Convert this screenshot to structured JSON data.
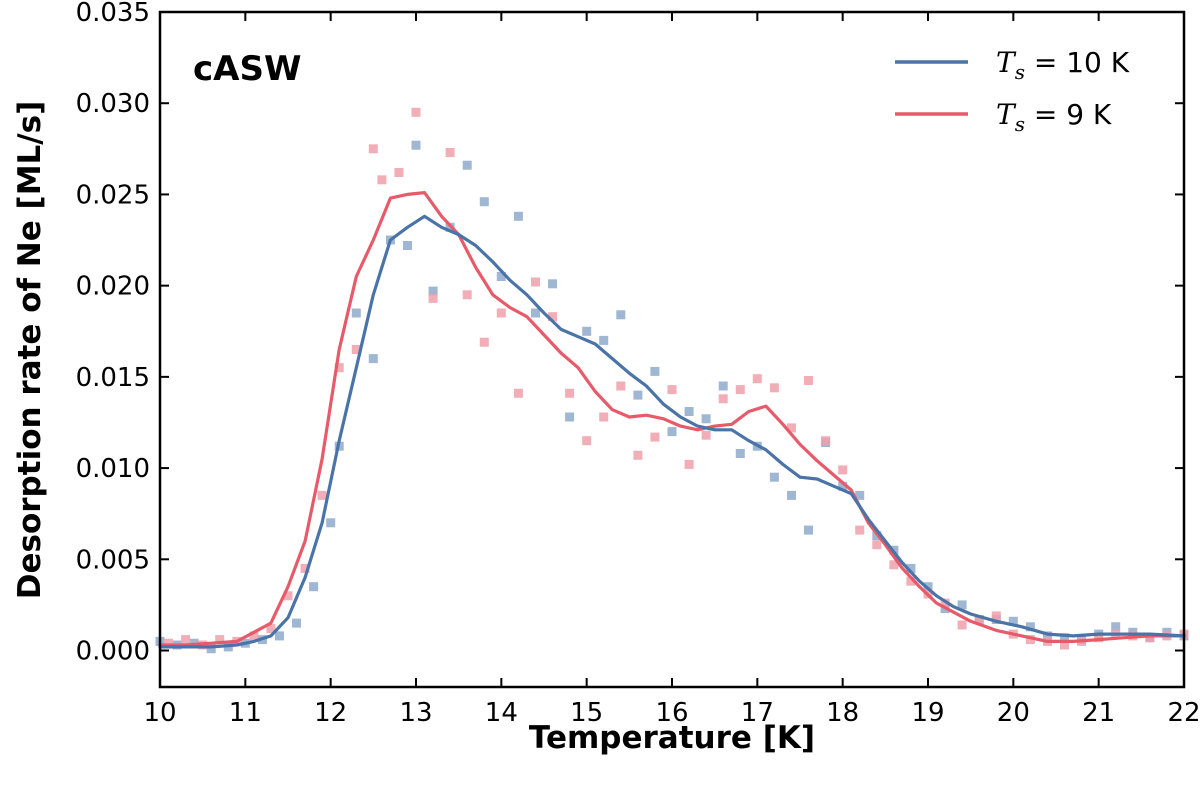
{
  "chart_data": {
    "type": "line",
    "panel_label": "cASW",
    "xlabel": "Temperature [K]",
    "ylabel": "Desorption rate of Ne [ML/s]",
    "xlim": [
      10,
      22
    ],
    "ylim": [
      -0.002,
      0.035
    ],
    "xticks": [
      10,
      11,
      12,
      13,
      14,
      15,
      16,
      17,
      18,
      19,
      20,
      21,
      22
    ],
    "yticks": [
      "0.000",
      "0.005",
      "0.010",
      "0.015",
      "0.020",
      "0.025",
      "0.030",
      "0.035"
    ],
    "legend_position": "top-right",
    "series": [
      {
        "name": "T_s = 10 K",
        "legend_var": "T",
        "legend_sub": "s",
        "legend_rest": " = 10 K",
        "color": "#4a74a8",
        "marker_color": "#8eaacb",
        "line": [
          [
            10.0,
            0.0002
          ],
          [
            10.3,
            0.0002
          ],
          [
            10.6,
            0.0002
          ],
          [
            10.9,
            0.0003
          ],
          [
            11.1,
            0.0005
          ],
          [
            11.3,
            0.0008
          ],
          [
            11.5,
            0.0018
          ],
          [
            11.7,
            0.004
          ],
          [
            11.9,
            0.007
          ],
          [
            12.1,
            0.0115
          ],
          [
            12.3,
            0.0155
          ],
          [
            12.5,
            0.0195
          ],
          [
            12.7,
            0.0225
          ],
          [
            12.9,
            0.0232
          ],
          [
            13.1,
            0.0238
          ],
          [
            13.3,
            0.0232
          ],
          [
            13.5,
            0.0228
          ],
          [
            13.7,
            0.0222
          ],
          [
            13.9,
            0.0213
          ],
          [
            14.1,
            0.0203
          ],
          [
            14.3,
            0.0195
          ],
          [
            14.5,
            0.0185
          ],
          [
            14.7,
            0.0176
          ],
          [
            14.9,
            0.0172
          ],
          [
            15.1,
            0.0168
          ],
          [
            15.3,
            0.016
          ],
          [
            15.5,
            0.0152
          ],
          [
            15.7,
            0.0145
          ],
          [
            15.9,
            0.0135
          ],
          [
            16.1,
            0.0128
          ],
          [
            16.3,
            0.0123
          ],
          [
            16.5,
            0.0121
          ],
          [
            16.7,
            0.0121
          ],
          [
            16.9,
            0.0115
          ],
          [
            17.1,
            0.011
          ],
          [
            17.3,
            0.0102
          ],
          [
            17.5,
            0.0095
          ],
          [
            17.7,
            0.0094
          ],
          [
            17.9,
            0.009
          ],
          [
            18.1,
            0.0086
          ],
          [
            18.3,
            0.0072
          ],
          [
            18.5,
            0.006
          ],
          [
            18.7,
            0.0048
          ],
          [
            18.9,
            0.0038
          ],
          [
            19.1,
            0.003
          ],
          [
            19.3,
            0.0024
          ],
          [
            19.5,
            0.002
          ],
          [
            19.8,
            0.0016
          ],
          [
            20.1,
            0.0013
          ],
          [
            20.4,
            0.0009
          ],
          [
            20.7,
            0.0008
          ],
          [
            21.0,
            0.0009
          ],
          [
            21.3,
            0.0009
          ],
          [
            21.6,
            0.0009
          ],
          [
            22.0,
            0.0008
          ]
        ],
        "points": [
          [
            10.0,
            0.0005
          ],
          [
            10.2,
            0.0003
          ],
          [
            10.4,
            0.0004
          ],
          [
            10.6,
            0.0001
          ],
          [
            10.8,
            0.0002
          ],
          [
            11.0,
            0.0004
          ],
          [
            11.2,
            0.0006
          ],
          [
            11.4,
            0.0008
          ],
          [
            11.6,
            0.0015
          ],
          [
            11.8,
            0.0035
          ],
          [
            12.0,
            0.007
          ],
          [
            12.1,
            0.0112
          ],
          [
            12.3,
            0.0185
          ],
          [
            12.5,
            0.016
          ],
          [
            12.7,
            0.0225
          ],
          [
            12.9,
            0.0222
          ],
          [
            13.0,
            0.0277
          ],
          [
            13.2,
            0.0197
          ],
          [
            13.4,
            0.0232
          ],
          [
            13.6,
            0.0266
          ],
          [
            13.8,
            0.0246
          ],
          [
            14.0,
            0.0205
          ],
          [
            14.2,
            0.0238
          ],
          [
            14.4,
            0.0185
          ],
          [
            14.6,
            0.0201
          ],
          [
            14.8,
            0.0128
          ],
          [
            15.0,
            0.0175
          ],
          [
            15.2,
            0.017
          ],
          [
            15.4,
            0.0184
          ],
          [
            15.6,
            0.014
          ],
          [
            15.8,
            0.0153
          ],
          [
            16.0,
            0.012
          ],
          [
            16.2,
            0.0131
          ],
          [
            16.4,
            0.0127
          ],
          [
            16.6,
            0.0145
          ],
          [
            16.8,
            0.0108
          ],
          [
            17.0,
            0.0112
          ],
          [
            17.2,
            0.0095
          ],
          [
            17.4,
            0.0085
          ],
          [
            17.6,
            0.0066
          ],
          [
            17.8,
            0.0114
          ],
          [
            18.0,
            0.009
          ],
          [
            18.2,
            0.0085
          ],
          [
            18.4,
            0.0063
          ],
          [
            18.6,
            0.0055
          ],
          [
            18.8,
            0.0045
          ],
          [
            19.0,
            0.0035
          ],
          [
            19.2,
            0.0023
          ],
          [
            19.4,
            0.0025
          ],
          [
            19.6,
            0.0017
          ],
          [
            19.8,
            0.0017
          ],
          [
            20.0,
            0.0016
          ],
          [
            20.2,
            0.0013
          ],
          [
            20.4,
            0.0008
          ],
          [
            20.6,
            0.0007
          ],
          [
            20.8,
            0.0006
          ],
          [
            21.0,
            0.0009
          ],
          [
            21.2,
            0.0013
          ],
          [
            21.4,
            0.001
          ],
          [
            21.6,
            0.0007
          ],
          [
            21.8,
            0.001
          ],
          [
            22.0,
            0.0008
          ]
        ]
      },
      {
        "name": "T_s = 9 K",
        "legend_var": "T",
        "legend_sub": "s",
        "legend_rest": " = 9 K",
        "color": "#e75a6a",
        "marker_color": "#f0a0aa",
        "line": [
          [
            10.0,
            0.0003
          ],
          [
            10.3,
            0.0003
          ],
          [
            10.6,
            0.0004
          ],
          [
            10.9,
            0.0005
          ],
          [
            11.1,
            0.001
          ],
          [
            11.3,
            0.0015
          ],
          [
            11.5,
            0.0035
          ],
          [
            11.7,
            0.006
          ],
          [
            11.9,
            0.0105
          ],
          [
            12.1,
            0.0165
          ],
          [
            12.3,
            0.0205
          ],
          [
            12.5,
            0.0225
          ],
          [
            12.7,
            0.0248
          ],
          [
            12.9,
            0.025
          ],
          [
            13.1,
            0.0251
          ],
          [
            13.3,
            0.0238
          ],
          [
            13.5,
            0.0228
          ],
          [
            13.7,
            0.021
          ],
          [
            13.9,
            0.0195
          ],
          [
            14.1,
            0.0188
          ],
          [
            14.3,
            0.0183
          ],
          [
            14.5,
            0.0173
          ],
          [
            14.7,
            0.0163
          ],
          [
            14.9,
            0.0155
          ],
          [
            15.1,
            0.0142
          ],
          [
            15.3,
            0.0132
          ],
          [
            15.5,
            0.0128
          ],
          [
            15.7,
            0.0129
          ],
          [
            15.9,
            0.0127
          ],
          [
            16.1,
            0.0123
          ],
          [
            16.3,
            0.0121
          ],
          [
            16.5,
            0.0123
          ],
          [
            16.7,
            0.0124
          ],
          [
            16.9,
            0.0131
          ],
          [
            17.1,
            0.0134
          ],
          [
            17.3,
            0.0124
          ],
          [
            17.5,
            0.0113
          ],
          [
            17.7,
            0.0104
          ],
          [
            17.9,
            0.0096
          ],
          [
            18.1,
            0.0088
          ],
          [
            18.3,
            0.007
          ],
          [
            18.5,
            0.0058
          ],
          [
            18.7,
            0.0045
          ],
          [
            18.9,
            0.0035
          ],
          [
            19.1,
            0.0026
          ],
          [
            19.3,
            0.0021
          ],
          [
            19.5,
            0.0016
          ],
          [
            19.8,
            0.0011
          ],
          [
            20.1,
            0.0008
          ],
          [
            20.4,
            0.0005
          ],
          [
            20.7,
            0.0005
          ],
          [
            21.0,
            0.0006
          ],
          [
            21.3,
            0.0007
          ],
          [
            21.6,
            0.0008
          ],
          [
            22.0,
            0.0008
          ]
        ],
        "points": [
          [
            10.1,
            0.0004
          ],
          [
            10.3,
            0.0006
          ],
          [
            10.5,
            0.0003
          ],
          [
            10.7,
            0.0006
          ],
          [
            10.9,
            0.0005
          ],
          [
            11.1,
            0.0008
          ],
          [
            11.3,
            0.0012
          ],
          [
            11.5,
            0.003
          ],
          [
            11.7,
            0.0045
          ],
          [
            11.9,
            0.0085
          ],
          [
            12.1,
            0.0155
          ],
          [
            12.3,
            0.0165
          ],
          [
            12.5,
            0.0275
          ],
          [
            12.6,
            0.0258
          ],
          [
            12.8,
            0.0262
          ],
          [
            13.0,
            0.0295
          ],
          [
            13.2,
            0.0193
          ],
          [
            13.4,
            0.0273
          ],
          [
            13.6,
            0.0195
          ],
          [
            13.8,
            0.0169
          ],
          [
            14.0,
            0.0185
          ],
          [
            14.2,
            0.0141
          ],
          [
            14.4,
            0.0202
          ],
          [
            14.6,
            0.0183
          ],
          [
            14.8,
            0.0141
          ],
          [
            15.0,
            0.0115
          ],
          [
            15.2,
            0.0128
          ],
          [
            15.4,
            0.0145
          ],
          [
            15.6,
            0.0107
          ],
          [
            15.8,
            0.0117
          ],
          [
            16.0,
            0.0143
          ],
          [
            16.2,
            0.0102
          ],
          [
            16.4,
            0.0118
          ],
          [
            16.6,
            0.0138
          ],
          [
            16.8,
            0.0143
          ],
          [
            17.0,
            0.0149
          ],
          [
            17.2,
            0.0144
          ],
          [
            17.4,
            0.0122
          ],
          [
            17.6,
            0.0148
          ],
          [
            17.8,
            0.0115
          ],
          [
            18.0,
            0.0099
          ],
          [
            18.2,
            0.0066
          ],
          [
            18.4,
            0.0058
          ],
          [
            18.6,
            0.0047
          ],
          [
            18.8,
            0.0038
          ],
          [
            19.0,
            0.0031
          ],
          [
            19.2,
            0.0026
          ],
          [
            19.4,
            0.0014
          ],
          [
            19.6,
            0.0017
          ],
          [
            19.8,
            0.0019
          ],
          [
            20.0,
            0.0009
          ],
          [
            20.2,
            0.0006
          ],
          [
            20.4,
            0.0005
          ],
          [
            20.6,
            0.0003
          ],
          [
            20.8,
            0.0005
          ],
          [
            21.0,
            0.0007
          ],
          [
            21.2,
            0.0009
          ],
          [
            21.4,
            0.0008
          ],
          [
            21.6,
            0.0007
          ],
          [
            21.8,
            0.0008
          ],
          [
            22.0,
            0.0009
          ]
        ]
      }
    ]
  }
}
